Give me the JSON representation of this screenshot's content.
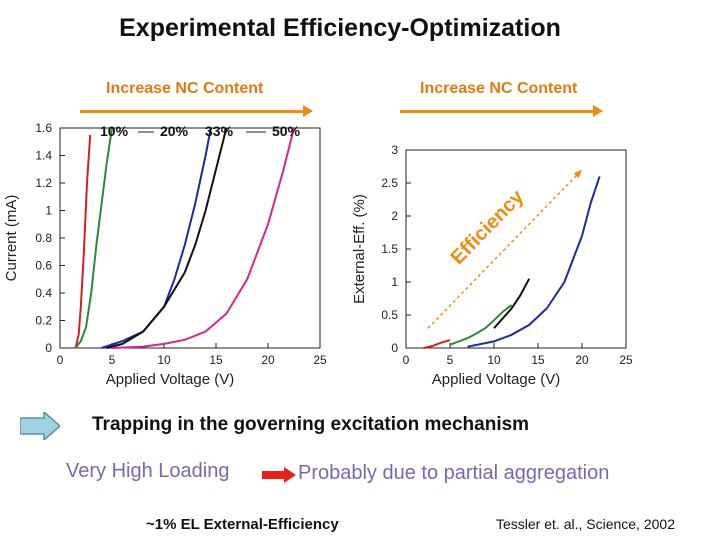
{
  "title": "Experimental Efficiency-Optimization",
  "nc_label_left": "Increase NC Content",
  "nc_label_right": "Increase NC Content",
  "trapping_text": "Trapping in the governing excitation mechanism",
  "loading_text": "Very High Loading",
  "aggregation_text": "Probably due to partial aggregation",
  "efficiency_note": "~1%   EL External-Efficiency",
  "citation": "Tessler et. al., Science, 2002",
  "colors": {
    "accent_orange": "#f08a10",
    "purple_text": "#7b66b0",
    "arrow_blue": "#9fd3de",
    "arrow_red": "#e8211a"
  },
  "chart_data": [
    {
      "type": "line",
      "xlabel": "Applied Voltage (V)",
      "ylabel": "Current (mA)",
      "xlim": [
        0,
        25
      ],
      "ylim": [
        0,
        1.6
      ],
      "x_ticks": [
        "0",
        "5",
        "10",
        "15",
        "20",
        "25"
      ],
      "y_ticks": [
        "0",
        "0.2",
        "0.4",
        "0.6",
        "0.8",
        "1",
        "1.2",
        "1.4",
        "1.6"
      ],
      "legend_labels": [
        "10%",
        "20%",
        "33%",
        "50%"
      ],
      "series": [
        {
          "color": "#d42020",
          "x": [
            1.5,
            1.8,
            2.0,
            2.3,
            2.6,
            2.9
          ],
          "y": [
            0.0,
            0.1,
            0.3,
            0.7,
            1.2,
            1.55
          ]
        },
        {
          "color": "#2a8a3a",
          "x": [
            1.5,
            2.0,
            2.5,
            3.0,
            3.5,
            4.0,
            4.5,
            5.0
          ],
          "y": [
            0.0,
            0.05,
            0.15,
            0.4,
            0.75,
            1.05,
            1.35,
            1.6
          ]
        },
        {
          "color": "#1a2aa0",
          "x": [
            4.0,
            6.0,
            8.0,
            10.0,
            11.0,
            12.0,
            13.0,
            14.0,
            14.5
          ],
          "y": [
            0.0,
            0.05,
            0.12,
            0.3,
            0.5,
            0.75,
            1.05,
            1.4,
            1.6
          ]
        },
        {
          "color": "#111111",
          "x": [
            4.5,
            6.0,
            8.0,
            10.0,
            12.0,
            13.0,
            14.0,
            15.0,
            16.0
          ],
          "y": [
            0.0,
            0.03,
            0.12,
            0.3,
            0.55,
            0.75,
            1.0,
            1.3,
            1.6
          ]
        },
        {
          "color": "#d42590",
          "x": [
            5.0,
            8.0,
            10.0,
            12.0,
            14.0,
            16.0,
            18.0,
            20.0,
            21.5,
            22.5
          ],
          "y": [
            0.0,
            0.01,
            0.03,
            0.06,
            0.12,
            0.25,
            0.5,
            0.9,
            1.3,
            1.6
          ]
        }
      ]
    },
    {
      "type": "line",
      "xlabel": "Applied Voltage (V)",
      "ylabel": "External-Eff. (%)",
      "xlim": [
        0,
        25
      ],
      "ylim": [
        0,
        3
      ],
      "x_ticks": [
        "0",
        "5",
        "10",
        "15",
        "20",
        "25"
      ],
      "y_ticks": [
        "0",
        "0.5",
        "1",
        "1.5",
        "2",
        "2.5",
        "3"
      ],
      "annotation": "Efficiency",
      "series": [
        {
          "color": "#d42020",
          "x": [
            2.0,
            3.0,
            4.0,
            5.0
          ],
          "y": [
            0.0,
            0.03,
            0.08,
            0.12
          ]
        },
        {
          "color": "#2a8a3a",
          "x": [
            5.0,
            6.0,
            7.0,
            8.0,
            9.0,
            10.0,
            11.0,
            12.0
          ],
          "y": [
            0.05,
            0.1,
            0.15,
            0.22,
            0.3,
            0.42,
            0.55,
            0.65
          ]
        },
        {
          "color": "#111111",
          "x": [
            10.0,
            11.0,
            12.0,
            13.0,
            14.0
          ],
          "y": [
            0.3,
            0.45,
            0.6,
            0.8,
            1.05
          ]
        },
        {
          "color": "#1a2aa0",
          "x": [
            7.0,
            10.0,
            12.0,
            14.0,
            16.0,
            18.0,
            20.0,
            21.0,
            22.0
          ],
          "y": [
            0.02,
            0.1,
            0.2,
            0.35,
            0.6,
            1.0,
            1.7,
            2.2,
            2.6
          ]
        }
      ]
    }
  ]
}
